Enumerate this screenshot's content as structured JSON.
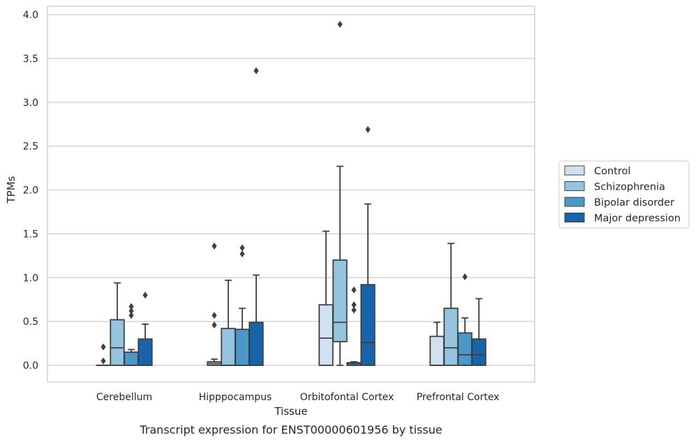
{
  "chart_data": {
    "type": "box",
    "caption": "Transcript expression for ENST00000601956 by tissue",
    "xlabel": "Tissue",
    "ylabel": "TPMs",
    "ylim": [
      -0.19,
      4.1
    ],
    "yticks": [
      0.0,
      0.5,
      1.0,
      1.5,
      2.0,
      2.5,
      3.0,
      3.5,
      4.0
    ],
    "ytick_labels": [
      "0.0",
      "0.5",
      "1.0",
      "1.5",
      "2.0",
      "2.5",
      "3.0",
      "3.5",
      "4.0"
    ],
    "grid": "horizontal",
    "legend_position": "right",
    "categories": [
      "Cerebellum",
      "Hipppocampus",
      "Orbitofontal Cortex",
      "Prefrontal Cortex"
    ],
    "series": [
      {
        "name": "Control",
        "color": "#d0e1f2",
        "boxes": [
          {
            "whislo": 0.0,
            "q1": 0.0,
            "med": 0.0,
            "q3": 0.0,
            "whishi": 0.0,
            "fliers": [
              0.05,
              0.21
            ]
          },
          {
            "whislo": 0.0,
            "q1": 0.0,
            "med": 0.02,
            "q3": 0.04,
            "whishi": 0.07,
            "fliers": [
              0.46,
              0.57,
              1.36
            ]
          },
          {
            "whislo": 0.0,
            "q1": 0.0,
            "med": 0.31,
            "q3": 0.69,
            "whishi": 1.53,
            "fliers": []
          },
          {
            "whislo": 0.0,
            "q1": 0.0,
            "med": 0.0,
            "q3": 0.33,
            "whishi": 0.49,
            "fliers": []
          }
        ]
      },
      {
        "name": "Schizophrenia",
        "color": "#94c4df",
        "boxes": [
          {
            "whislo": 0.0,
            "q1": 0.0,
            "med": 0.2,
            "q3": 0.52,
            "whishi": 0.94,
            "fliers": []
          },
          {
            "whislo": 0.0,
            "q1": 0.0,
            "med": 0.0,
            "q3": 0.42,
            "whishi": 0.97,
            "fliers": []
          },
          {
            "whislo": 0.0,
            "q1": 0.27,
            "med": 0.49,
            "q3": 1.2,
            "whishi": 2.27,
            "fliers": [
              3.89
            ]
          },
          {
            "whislo": 0.0,
            "q1": 0.0,
            "med": 0.2,
            "q3": 0.65,
            "whishi": 1.39,
            "fliers": []
          }
        ]
      },
      {
        "name": "Bipolar disorder",
        "color": "#4a98c9",
        "boxes": [
          {
            "whislo": 0.0,
            "q1": 0.0,
            "med": 0.0,
            "q3": 0.15,
            "whishi": 0.18,
            "fliers": [
              0.57,
              0.62,
              0.67
            ]
          },
          {
            "whislo": 0.0,
            "q1": 0.0,
            "med": 0.0,
            "q3": 0.41,
            "whishi": 0.65,
            "fliers": [
              1.27,
              1.34
            ]
          },
          {
            "whislo": 0.0,
            "q1": 0.0,
            "med": 0.02,
            "q3": 0.03,
            "whishi": 0.04,
            "fliers": [
              0.63,
              0.69,
              0.86
            ]
          },
          {
            "whislo": 0.0,
            "q1": 0.0,
            "med": 0.12,
            "q3": 0.37,
            "whishi": 0.54,
            "fliers": [
              1.01
            ]
          }
        ]
      },
      {
        "name": "Major depression",
        "color": "#1764ab",
        "boxes": [
          {
            "whislo": 0.0,
            "q1": 0.0,
            "med": 0.0,
            "q3": 0.3,
            "whishi": 0.47,
            "fliers": [
              0.8
            ]
          },
          {
            "whislo": 0.0,
            "q1": 0.0,
            "med": 0.0,
            "q3": 0.49,
            "whishi": 1.03,
            "fliers": [
              3.36
            ]
          },
          {
            "whislo": 0.0,
            "q1": 0.0,
            "med": 0.26,
            "q3": 0.92,
            "whishi": 1.84,
            "fliers": [
              2.69
            ]
          },
          {
            "whislo": 0.0,
            "q1": 0.0,
            "med": 0.12,
            "q3": 0.3,
            "whishi": 0.76,
            "fliers": []
          }
        ]
      }
    ]
  },
  "colors": {
    "box_edge": "#3f3f3f",
    "grid": "#cccccc",
    "frame": "#cccccc"
  }
}
